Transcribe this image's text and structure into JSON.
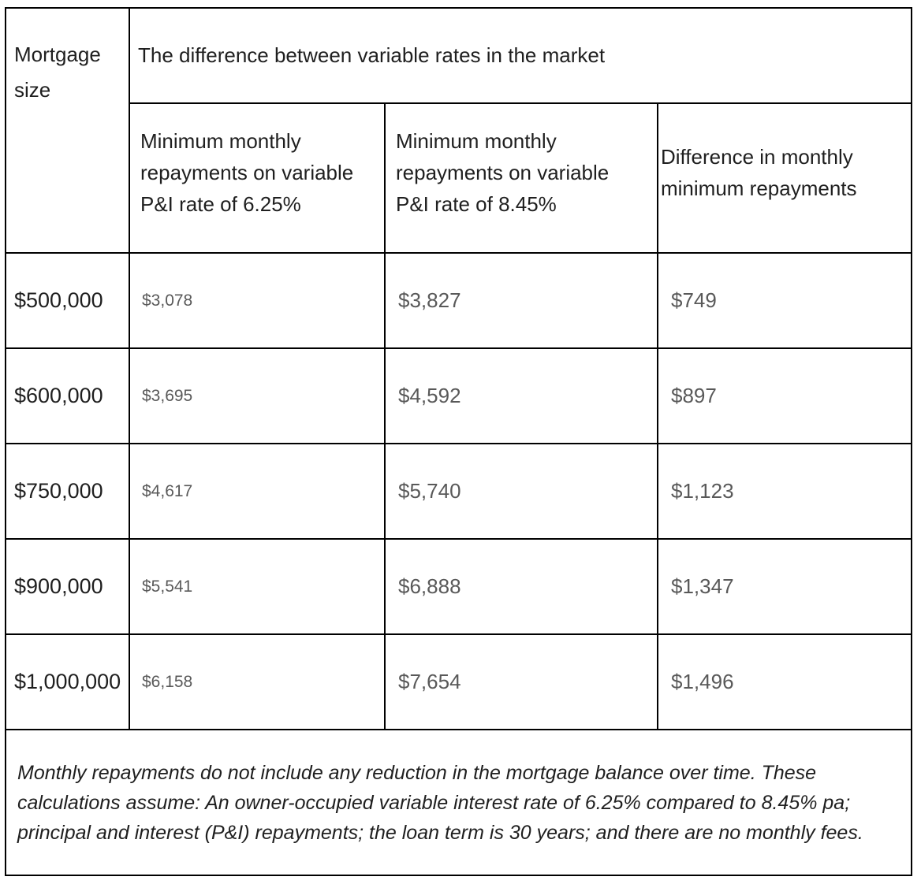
{
  "table": {
    "corner_header": "Mortgage size",
    "group_header": "The difference between variable rates in the market",
    "column_headers": {
      "rate_625": "Minimum monthly repayments on variable P&I rate of 6.25%",
      "rate_845": "Minimum monthly repayments on variable P&I rate of 8.45%",
      "difference": "Difference in monthly minimum repayments"
    },
    "rows": [
      {
        "size": "$500,000",
        "repay_625": "$3,078",
        "repay_845": "$3,827",
        "difference": "$749"
      },
      {
        "size": "$600,000",
        "repay_625": "$3,695",
        "repay_845": "$4,592",
        "difference": "$897"
      },
      {
        "size": "$750,000",
        "repay_625": "$4,617",
        "repay_845": "$5,740",
        "difference": "$1,123"
      },
      {
        "size": "$900,000",
        "repay_625": "$5,541",
        "repay_845": "$6,888",
        "difference": "$1,347"
      },
      {
        "size": "$1,000,000",
        "repay_625": "$6,158",
        "repay_845": "$7,654",
        "difference": "$1,496"
      }
    ],
    "footnote": "Monthly repayments do not include any reduction in the mortgage balance over time. These calculations assume: An owner-occupied variable interest rate of 6.25% compared to 8.45% pa; principal and interest (P&I) repayments; the loan term is 30 years; and there are no monthly fees.",
    "colors": {
      "border": "#000000",
      "header_text": "#1f1f1f",
      "value_text": "#595959"
    }
  }
}
